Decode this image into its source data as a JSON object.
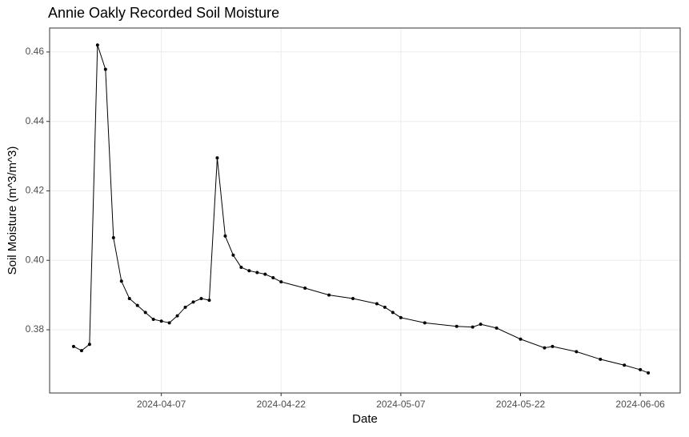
{
  "chart_data": {
    "type": "line",
    "title": "Annie Oakly Recorded Soil Moisture",
    "x_label": "Date",
    "y_label": "Soil Moisture (m^3/m^3)",
    "x": [
      "2024-03-27",
      "2024-03-28",
      "2024-03-29",
      "2024-03-30",
      "2024-03-31",
      "2024-04-01",
      "2024-04-02",
      "2024-04-03",
      "2024-04-04",
      "2024-04-05",
      "2024-04-06",
      "2024-04-07",
      "2024-04-08",
      "2024-04-09",
      "2024-04-10",
      "2024-04-11",
      "2024-04-12",
      "2024-04-13",
      "2024-04-14",
      "2024-04-15",
      "2024-04-16",
      "2024-04-17",
      "2024-04-18",
      "2024-04-19",
      "2024-04-20",
      "2024-04-21",
      "2024-04-22",
      "2024-04-25",
      "2024-04-28",
      "2024-05-01",
      "2024-05-04",
      "2024-05-05",
      "2024-05-06",
      "2024-05-07",
      "2024-05-10",
      "2024-05-14",
      "2024-05-16",
      "2024-05-17",
      "2024-05-19",
      "2024-05-22",
      "2024-05-25",
      "2024-05-26",
      "2024-05-29",
      "2024-06-01",
      "2024-06-04",
      "2024-06-06",
      "2024-06-07"
    ],
    "series": [
      {
        "name": "Soil Moisture",
        "color": "#000000",
        "values": [
          0.3752,
          0.374,
          0.3758,
          0.462,
          0.455,
          0.4065,
          0.394,
          0.389,
          0.387,
          0.385,
          0.383,
          0.3825,
          0.382,
          0.384,
          0.3865,
          0.388,
          0.389,
          0.3885,
          0.4295,
          0.407,
          0.4015,
          0.398,
          0.397,
          0.3965,
          0.396,
          0.395,
          0.3938,
          0.392,
          0.39,
          0.389,
          0.3875,
          0.3865,
          0.385,
          0.3835,
          0.382,
          0.381,
          0.3808,
          0.3816,
          0.3805,
          0.3773,
          0.3748,
          0.3752,
          0.3737,
          0.3715,
          0.3698,
          0.3685,
          0.3676
        ]
      }
    ],
    "xlim": [
      "2024-03-24",
      "2024-06-11"
    ],
    "xticks": [
      "2024-04-07",
      "2024-04-22",
      "2024-05-07",
      "2024-05-22",
      "2024-06-06"
    ],
    "ylim": [
      0.3618,
      0.4669
    ],
    "yticks": [
      0.38,
      {
        "value": 0.4,
        "label": "0.40"
      },
      0.42,
      0.44,
      0.46
    ],
    "grid": true
  }
}
